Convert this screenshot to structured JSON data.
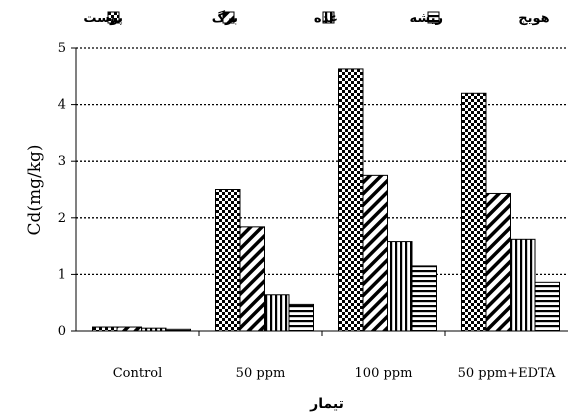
{
  "chart_data": {
    "type": "bar",
    "title": "هویج",
    "xlabel": "تیمار",
    "ylabel": "Cd(mg/kg)",
    "ylim": [
      0,
      5
    ],
    "yticks": [
      0,
      1,
      2,
      3,
      4,
      5
    ],
    "grid": true,
    "legend_position": "top",
    "categories": [
      "Control",
      "50 ppm",
      "100 ppm",
      "50 ppm+EDTA"
    ],
    "series": [
      {
        "name": "پوست",
        "pattern": "checker",
        "values": [
          0.07,
          2.5,
          4.63,
          4.2
        ]
      },
      {
        "name": "برگ",
        "pattern": "diagonal",
        "values": [
          0.07,
          1.84,
          2.75,
          2.43
        ]
      },
      {
        "name": "غده",
        "pattern": "vertical",
        "values": [
          0.05,
          0.64,
          1.58,
          1.62
        ]
      },
      {
        "name": "ریشه",
        "pattern": "horizontal",
        "values": [
          0.03,
          0.47,
          1.15,
          0.86
        ]
      }
    ]
  }
}
